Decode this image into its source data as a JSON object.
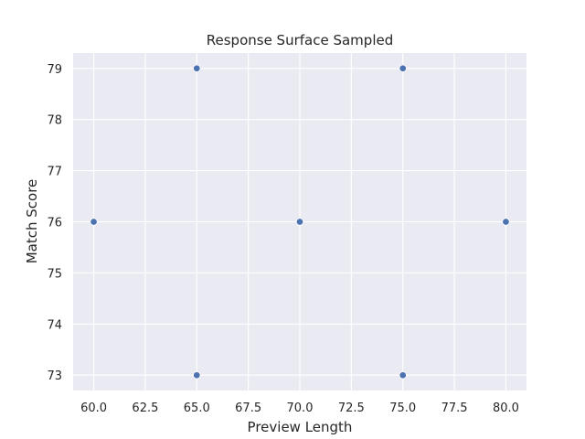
{
  "chart_data": {
    "type": "scatter",
    "title": "Response Surface Sampled",
    "xlabel": "Preview Length",
    "ylabel": "Match Score",
    "xlim": [
      59,
      81
    ],
    "ylim": [
      72.7,
      79.3
    ],
    "xticks": [
      60.0,
      62.5,
      65.0,
      67.5,
      70.0,
      72.5,
      75.0,
      77.5,
      80.0
    ],
    "xtick_labels": [
      "60.0",
      "62.5",
      "65.0",
      "67.5",
      "70.0",
      "72.5",
      "75.0",
      "77.5",
      "80.0"
    ],
    "yticks": [
      73,
      74,
      75,
      76,
      77,
      78,
      79
    ],
    "ytick_labels": [
      "73",
      "74",
      "75",
      "76",
      "77",
      "78",
      "79"
    ],
    "grid": true,
    "background_color": "#eaeaf2",
    "marker_color": "#4c72b0",
    "points": [
      {
        "x": 60,
        "y": 76
      },
      {
        "x": 65,
        "y": 79
      },
      {
        "x": 65,
        "y": 73
      },
      {
        "x": 70,
        "y": 76
      },
      {
        "x": 75,
        "y": 79
      },
      {
        "x": 75,
        "y": 73
      },
      {
        "x": 80,
        "y": 76
      }
    ]
  }
}
